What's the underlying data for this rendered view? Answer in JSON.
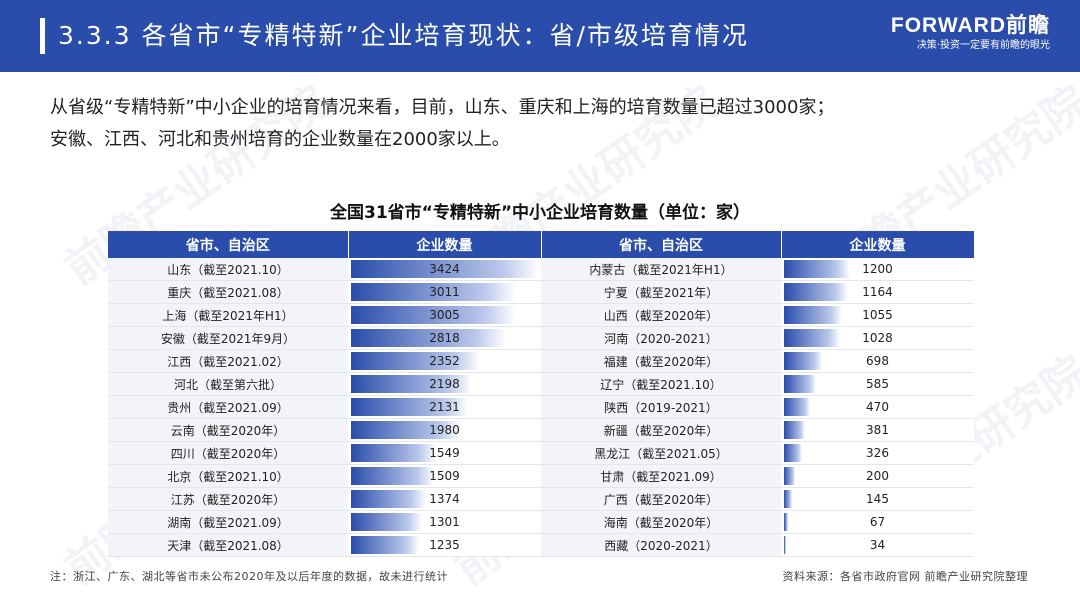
{
  "header": {
    "title": "3.3.3 各省市“专精特新”企业培育现状：省/市级培育情况",
    "brand": "FORWARD前瞻",
    "slogan": "决策·投资一定要有前瞻的眼光"
  },
  "intro": {
    "line1": "从省级“专精特新”中小企业的培育情况来看，目前，山东、重庆和上海的培育数量已超过3000家；",
    "line2": "安徽、江西、河北和贵州培育的企业数量在2000家以上。"
  },
  "watermark": "前瞻产业研究院",
  "table": {
    "headers": [
      "省市、自治区",
      "企业数量",
      "省市、自治区",
      "企业数量"
    ]
  },
  "chart_data": {
    "type": "bar",
    "title": "全国31省市“专精特新”中小企业培育数量（单位：家）",
    "groups": [
      {
        "categories": [
          "山东（截至2021.10）",
          "重庆（截至2021.08）",
          "上海（截至2021年H1）",
          "安徽（截至2021年9月）",
          "江西（截至2021.02）",
          "河北（截至第六批）",
          "贵州（截至2021.09）",
          "云南（截至2020年）",
          "四川（截至2020年）",
          "北京（截至2021.10）",
          "江苏（截至2020年）",
          "湖南（截至2021.09）",
          "天津（截至2021.08）"
        ],
        "values": [
          3424,
          3011,
          3005,
          2818,
          2352,
          2198,
          2131,
          1980,
          1549,
          1509,
          1374,
          1301,
          1235
        ]
      },
      {
        "categories": [
          "内蒙古（截至2021年H1）",
          "宁夏（截至2021年）",
          "山西（截至2020年）",
          "河南（2020-2021）",
          "福建（截至2020年）",
          "辽宁（截至2021.10）",
          "陕西（2019-2021）",
          "新疆（截至2020年）",
          "黑龙江（截至2021.05）",
          "甘肃（截至2021.09）",
          "广西（截至2020年）",
          "海南（截至2020年）",
          "西藏（2020-2021）"
        ],
        "values": [
          1200,
          1164,
          1055,
          1028,
          698,
          585,
          470,
          381,
          326,
          200,
          145,
          67,
          34
        ]
      }
    ]
  },
  "footnote": "注：浙江、广东、湖北等省市未公布2020年及以后年度的数据，故未进行统计",
  "source": "资料来源：各省市政府官网  前瞻产业研究院整理",
  "colors": {
    "header_bg": "#2a4dab",
    "bar": "#2a4dab"
  }
}
